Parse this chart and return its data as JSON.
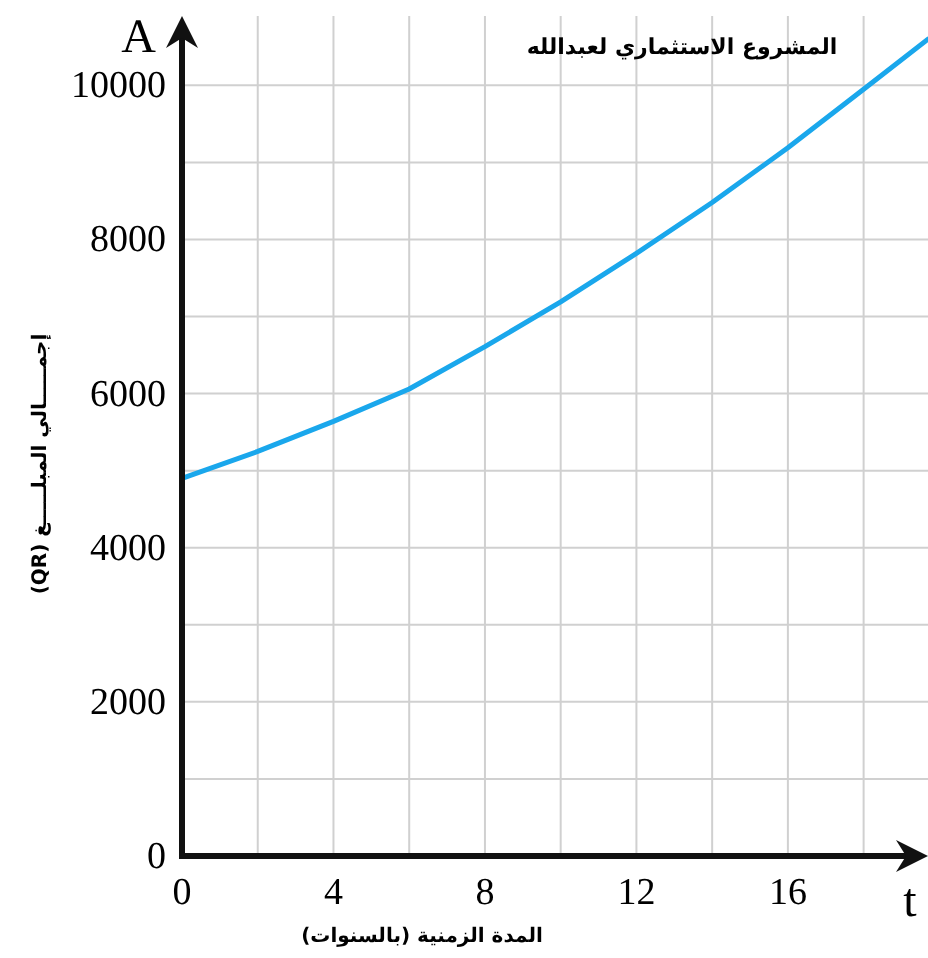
{
  "chart_data": {
    "type": "line",
    "title": "المشروع الاستثماري لعبدالله",
    "xlabel": "المدة الزمنية (بالسنوات)",
    "ylabel": "إجمـــــالي المبلـــــغ (QR)",
    "annotations": [
      "A",
      "t"
    ],
    "x": [
      0,
      2,
      4,
      6,
      8,
      10,
      12,
      14,
      16,
      18,
      19.7
    ],
    "series": [
      {
        "color": "#1aa7ec",
        "values": [
          4900,
          5250,
          5640,
          6060,
          6610,
          7190,
          7820,
          8480,
          9190,
          9950,
          10600
        ]
      }
    ],
    "xlim": [
      0,
      19.7
    ],
    "ylim": [
      0,
      10900
    ],
    "xticks": [
      0,
      {
        "value": 2,
        "label": null
      },
      4,
      {
        "value": 6,
        "label": null
      },
      8,
      {
        "value": 10,
        "label": null
      },
      12,
      {
        "value": 14,
        "label": null
      },
      16,
      {
        "value": 18,
        "label": null
      }
    ],
    "yticks": [
      0,
      {
        "value": 1000,
        "label": null
      },
      2000,
      {
        "value": 3000,
        "label": null
      },
      4000,
      {
        "value": 5000,
        "label": null
      },
      6000,
      {
        "value": 7000,
        "label": null
      },
      8000,
      {
        "value": 9000,
        "label": null
      },
      10000
    ],
    "grid": true,
    "marker": "none",
    "line_style": "solid"
  }
}
